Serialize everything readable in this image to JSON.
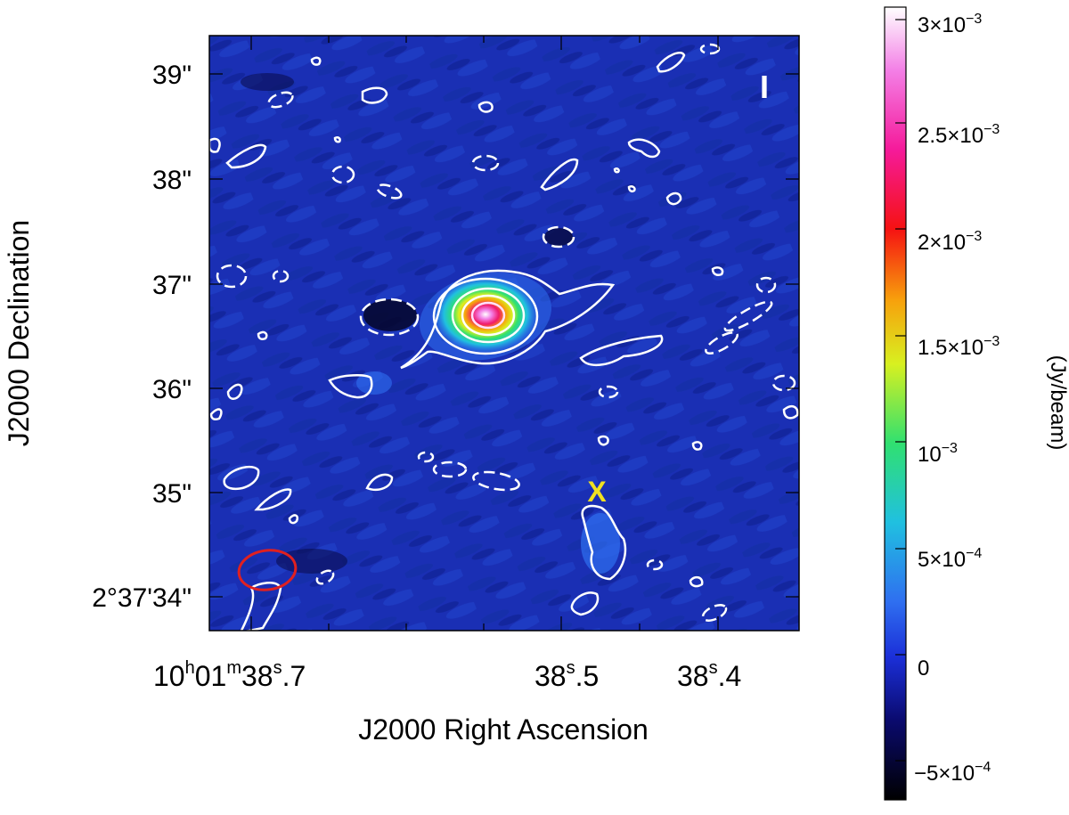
{
  "image": {
    "stokes_label": "I",
    "marker_label": "X",
    "x_axis_label": "J2000 Right Ascension",
    "y_axis_label": "J2000 Declination",
    "x_ticks": [
      {
        "h": "10",
        "m": "01",
        "s": "38",
        "f": ".7",
        "full": true
      },
      {
        "s": "38",
        "f": ".5",
        "full": false
      },
      {
        "s": "38",
        "f": ".4",
        "full": false
      }
    ],
    "y_ticks": [
      "39\"",
      "38\"",
      "37\"",
      "36\"",
      "35\"",
      "2°37'34\""
    ],
    "colorbar": {
      "unit": "(Jy/beam)",
      "ticks": [
        {
          "mantissa": "3×10",
          "exp": "−3"
        },
        {
          "mantissa": "2.5×10",
          "exp": "−3"
        },
        {
          "mantissa": "2×10",
          "exp": "−3"
        },
        {
          "mantissa": "1.5×10",
          "exp": "−3"
        },
        {
          "mantissa": "10",
          "exp": "−3"
        },
        {
          "mantissa": "5×10",
          "exp": "−4"
        },
        {
          "mantissa": "0",
          "exp": ""
        },
        {
          "mantissa": "−5×10",
          "exp": "−4"
        }
      ],
      "colors": [
        "#000000",
        "#0a0a6e",
        "#1b2fd8",
        "#2f6ff0",
        "#20c0e0",
        "#30e070",
        "#d8f020",
        "#f7a10c",
        "#f51212",
        "#f51a9a",
        "#f37fe6",
        "#ffffff"
      ]
    },
    "colors": {
      "background": "#1a2fb4",
      "contour": "#ffffff",
      "marker": "#f0e020",
      "beam": "#e02020"
    }
  }
}
